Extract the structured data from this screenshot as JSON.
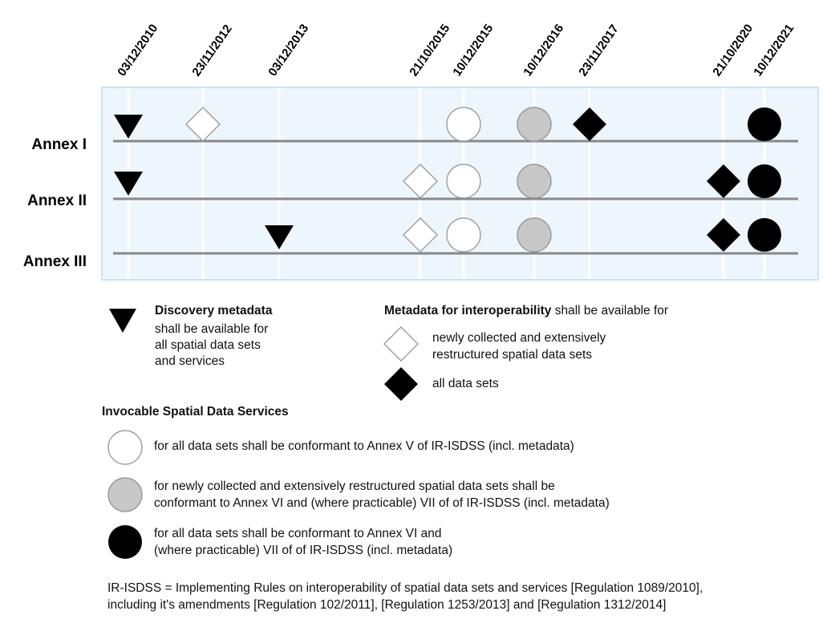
{
  "dates": [
    "03/12/2010",
    "23/11/2012",
    "03/12/2013",
    "21/10/2015",
    "10/12/2015",
    "10/12/2016",
    "23/11/2017",
    "21/10/2020",
    "10/12/2021"
  ],
  "annexes": [
    {
      "label": "Annex I",
      "markers": [
        {
          "date": "03/12/2010",
          "symbol": "triangle-black"
        },
        {
          "date": "23/11/2012",
          "symbol": "diamond-white"
        },
        {
          "date": "10/12/2015",
          "symbol": "circle-white"
        },
        {
          "date": "10/12/2016",
          "symbol": "circle-gray"
        },
        {
          "date": "23/11/2017",
          "symbol": "diamond-black"
        },
        {
          "date": "10/12/2021",
          "symbol": "circle-black"
        }
      ]
    },
    {
      "label": "Annex II",
      "markers": [
        {
          "date": "03/12/2010",
          "symbol": "triangle-black"
        },
        {
          "date": "21/10/2015",
          "symbol": "diamond-white"
        },
        {
          "date": "10/12/2015",
          "symbol": "circle-white"
        },
        {
          "date": "10/12/2016",
          "symbol": "circle-gray"
        },
        {
          "date": "21/10/2020",
          "symbol": "diamond-black"
        },
        {
          "date": "10/12/2021",
          "symbol": "circle-black"
        }
      ]
    },
    {
      "label": "Annex III",
      "markers": [
        {
          "date": "03/12/2013",
          "symbol": "triangle-black"
        },
        {
          "date": "21/10/2015",
          "symbol": "diamond-white"
        },
        {
          "date": "10/12/2015",
          "symbol": "circle-white"
        },
        {
          "date": "10/12/2016",
          "symbol": "circle-gray"
        },
        {
          "date": "21/10/2020",
          "symbol": "diamond-black"
        },
        {
          "date": "10/12/2021",
          "symbol": "circle-black"
        }
      ]
    }
  ],
  "colors": {
    "panel_fill": "#edf6fd",
    "panel_border": "#bcdcf2",
    "track_line": "#888888",
    "guide_line": "#ffffff",
    "gray_fill": "#c8c8c8",
    "gray_stroke": "#999999",
    "white_stroke": "#a0a0a0"
  },
  "legend": {
    "discovery": {
      "title": "Discovery metadata",
      "lines": [
        "shall be available for",
        "all spatial data sets",
        "and services"
      ]
    },
    "interop": {
      "title": "Metadata for interoperability",
      "suffix": " shall be available for",
      "white_lines": [
        "newly collected and extensively",
        "restructured spatial data sets"
      ],
      "black_text": "all data sets"
    },
    "services": {
      "title": "Invocable Spatial Data Services",
      "white": [
        "for all data sets shall be conformant to Annex V of IR-ISDSS (incl. metadata)"
      ],
      "gray": [
        "for newly collected and extensively restructured spatial data sets shall be",
        "conformant to Annex VI and (where practicable) VII of of IR-ISDSS (incl. metadata)"
      ],
      "black": [
        "for all data sets shall be conformant to Annex VI and",
        "(where practicable) VII of of IR-ISDSS (incl. metadata)"
      ]
    }
  },
  "footnote": [
    "IR-ISDSS = Implementing Rules on interoperability of spatial data sets and services [Regulation 1089/2010],",
    "including it's amendments [Regulation 102/2011], [Regulation 1253/2013] and [Regulation 1312/2014]"
  ]
}
